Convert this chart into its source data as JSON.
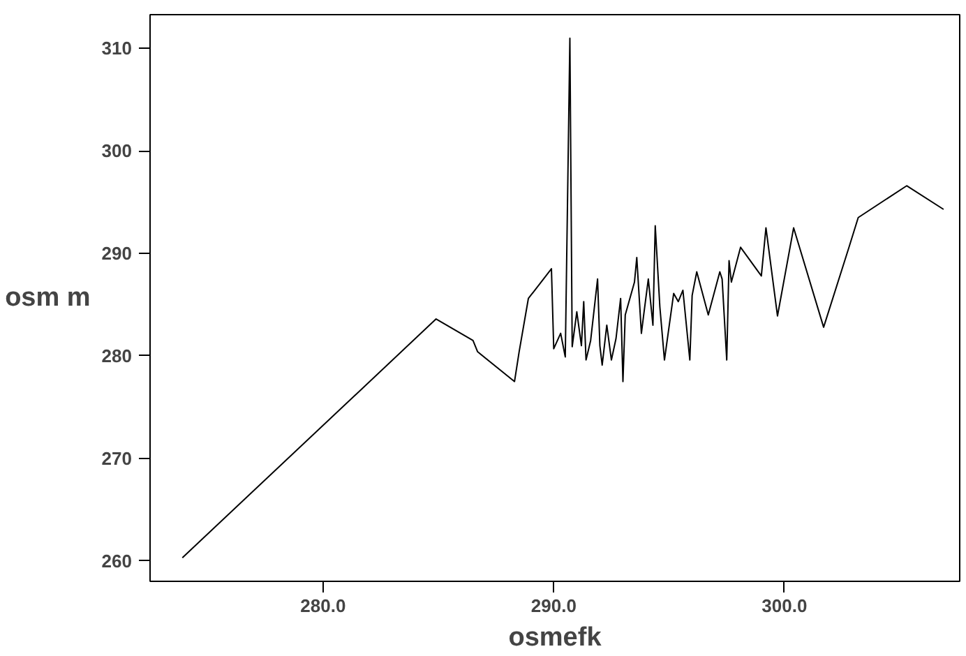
{
  "chart_data": {
    "type": "line",
    "xlabel": "osmefk",
    "ylabel": "osm m",
    "x": [
      273.9,
      284.9,
      286.5,
      286.7,
      288.3,
      288.5,
      288.9,
      289.9,
      290.0,
      290.3,
      290.5,
      290.7,
      290.8,
      291.0,
      291.2,
      291.3,
      291.4,
      291.6,
      291.9,
      292.0,
      292.1,
      292.3,
      292.5,
      292.7,
      292.9,
      293.0,
      293.1,
      293.5,
      293.6,
      293.8,
      293.9,
      294.1,
      294.3,
      294.4,
      294.6,
      294.8,
      295.2,
      295.4,
      295.6,
      295.9,
      296.0,
      296.2,
      296.7,
      297.2,
      297.3,
      297.5,
      297.6,
      297.7,
      298.1,
      299.0,
      299.2,
      299.7,
      300.4,
      301.7,
      302.8,
      303.2,
      305.3,
      306.9
    ],
    "series": [
      {
        "color": "#000000",
        "values": [
          260.3,
          283.6,
          281.5,
          280.4,
          277.5,
          280.4,
          285.6,
          288.5,
          280.7,
          282.2,
          279.9,
          311.0,
          280.9,
          284.3,
          281.0,
          285.3,
          279.6,
          281.5,
          287.5,
          281.0,
          279.1,
          283.0,
          279.6,
          281.7,
          285.6,
          277.5,
          284.0,
          287.2,
          289.6,
          282.2,
          284.0,
          287.5,
          283.0,
          292.7,
          284.8,
          279.6,
          286.1,
          285.3,
          286.4,
          279.6,
          285.9,
          288.2,
          284.0,
          288.2,
          287.5,
          279.6,
          289.3,
          287.2,
          290.6,
          287.8,
          292.5,
          283.9,
          292.5,
          282.8,
          290.6,
          293.5,
          296.6,
          294.3
        ]
      }
    ],
    "xlim": [
      272.5,
      307.6
    ],
    "ylim": [
      258,
      313.3
    ],
    "xticks": [
      {
        "value": 280,
        "label": "280.0"
      },
      {
        "value": 290,
        "label": "290.0"
      },
      {
        "value": 300,
        "label": "300.0"
      }
    ],
    "yticks": [
      260,
      270,
      280,
      290,
      300,
      310
    ],
    "grid": false
  }
}
